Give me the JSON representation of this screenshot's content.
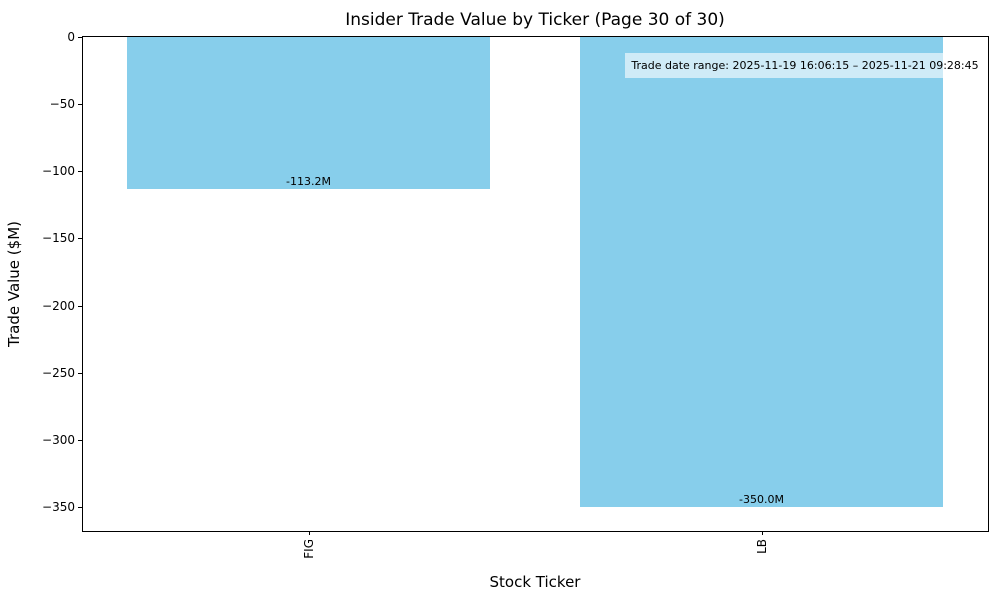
{
  "chart_data": {
    "type": "bar",
    "title": "Insider Trade Value by Ticker (Page 30 of 30)",
    "xlabel": "Stock Ticker",
    "ylabel": "Trade Value ($M)",
    "categories": [
      "FIG",
      "LB"
    ],
    "values": [
      -113.2,
      -350.0
    ],
    "bar_labels": [
      "-113.2M",
      "-350.0M"
    ],
    "bar_color": "#87CEEB",
    "yticks": [
      0,
      -50,
      -100,
      -150,
      -200,
      -250,
      -300,
      -350
    ],
    "ytick_labels": [
      "0",
      "−50",
      "−100",
      "−150",
      "−200",
      "−250",
      "−300",
      "−350"
    ],
    "ylim": [
      -367.5,
      0
    ],
    "grid": false,
    "background_color": "#ffffff",
    "text_color": "#000000",
    "annotation": {
      "text": "Trade date range: 2025-11-19 16:06:15 – 2025-11-21 09:28:45",
      "bbox_color": "rgba(255,255,255,0.6)"
    }
  }
}
